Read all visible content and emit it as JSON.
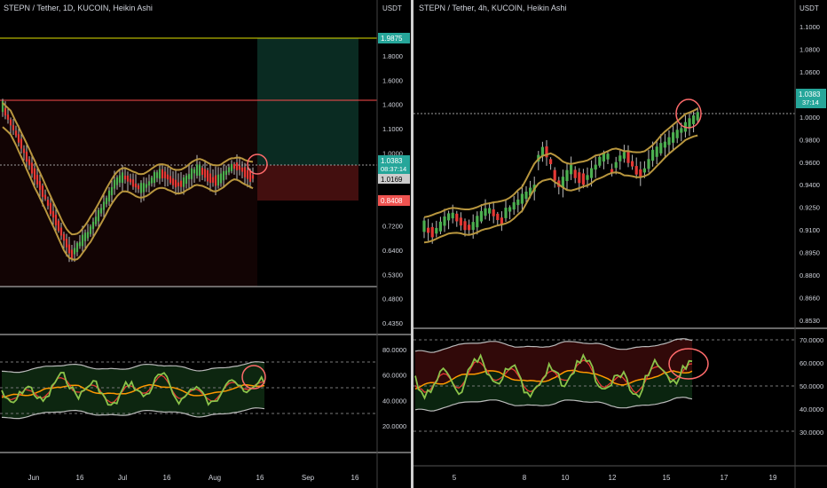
{
  "left_panel": {
    "title": "STEPN / Tether, 1D, KUCOIN, Heikin Ashi",
    "currency": "USDT",
    "price_ticks": [
      "1.8000",
      "1.6000",
      "1.4000",
      "1.1000",
      "1.0000",
      "0.9000",
      "0.8000",
      "0.7200",
      "0.6400",
      "0.5300",
      "0.4800",
      "0.4350"
    ],
    "osc_ticks": [
      "80.0000",
      "60.0000",
      "40.0000",
      "20.0000"
    ],
    "x_ticks": [
      "Jun",
      "16",
      "Jul",
      "16",
      "Aug",
      "16",
      "Sep",
      "16"
    ],
    "tags": {
      "target": "1.9875",
      "last": "1.0383",
      "countdown": "08:37:14",
      "entry": "1.0169",
      "stop": "0.8408"
    }
  },
  "right_panel": {
    "title": "STEPN / Tether, 4h, KUCOIN, Heikin Ashi",
    "currency": "USDT",
    "price_ticks": [
      "1.1000",
      "1.0800",
      "1.0600",
      "1.0200",
      "1.0000",
      "0.9800",
      "0.9600",
      "0.9400",
      "0.9250",
      "0.9100",
      "0.8950",
      "0.8800",
      "0.8660",
      "0.8530"
    ],
    "osc_ticks": [
      "70.0000",
      "60.0000",
      "50.0000",
      "40.0000",
      "30.0000"
    ],
    "x_ticks": [
      "5",
      "8",
      "10",
      "12",
      "15",
      "17",
      "19"
    ],
    "tags": {
      "last": "1.0383",
      "countdown": "37:14"
    }
  },
  "colors": {
    "up_candle": "#4caf50",
    "down_candle": "#e53935",
    "band": "#b8963e",
    "osc_line": "#8bc34a",
    "osc_signal": "#ff9800",
    "target_line": "#e0e000",
    "resistance_line": "#ff4d4d",
    "highlight_circle": "#ff6b6b"
  },
  "chart_data": [
    {
      "type": "candlestick",
      "title": "STEPN / Tether, 1D, KUCOIN, Heikin Ashi",
      "ylabel": "USDT",
      "scale": "log",
      "ylim": [
        0.42,
        2.3
      ],
      "x": [
        "Jun",
        "16",
        "Jul",
        "16",
        "Aug",
        "16",
        "Sep",
        "16"
      ],
      "trend": [
        1.45,
        1.4,
        1.3,
        1.2,
        1.1,
        1.0,
        0.9,
        0.8,
        0.7,
        0.62,
        0.6,
        0.65,
        0.72,
        0.8,
        0.88,
        0.94,
        0.96,
        0.95,
        0.94,
        0.95,
        0.97,
        0.99,
        0.98,
        0.97,
        0.98,
        0.99,
        0.99,
        1.0,
        1.02,
        1.04
      ],
      "levels": {
        "target": 1.9875,
        "resistance": 1.43,
        "entry": 1.0169,
        "stop": 0.8408,
        "support": 0.53,
        "last": 1.0383
      },
      "oscillator": {
        "ylim": [
          0,
          100
        ],
        "ticks": [
          80,
          60,
          40,
          20
        ],
        "levels": [
          70,
          50,
          30
        ]
      }
    },
    {
      "type": "candlestick",
      "title": "STEPN / Tether, 4h, KUCOIN, Heikin Ashi",
      "ylabel": "USDT",
      "x": [
        "5",
        "8",
        "10",
        "12",
        "15",
        "17",
        "19"
      ],
      "trend": [
        0.93,
        0.92,
        0.915,
        0.91,
        0.92,
        0.925,
        0.93,
        0.935,
        0.93,
        0.925,
        0.93,
        0.935,
        0.94,
        0.96,
        1.0,
        0.99,
        0.97,
        0.95,
        0.96,
        0.98,
        0.99,
        0.975,
        0.965,
        0.96,
        0.97,
        0.99,
        1.0,
        0.985,
        1.01,
        1.025
      ],
      "levels": {
        "last": 1.0383
      },
      "oscillator": {
        "ylim": [
          25,
          75
        ],
        "ticks": [
          70,
          60,
          50,
          40,
          30
        ],
        "levels": [
          70,
          50,
          30
        ]
      }
    }
  ]
}
